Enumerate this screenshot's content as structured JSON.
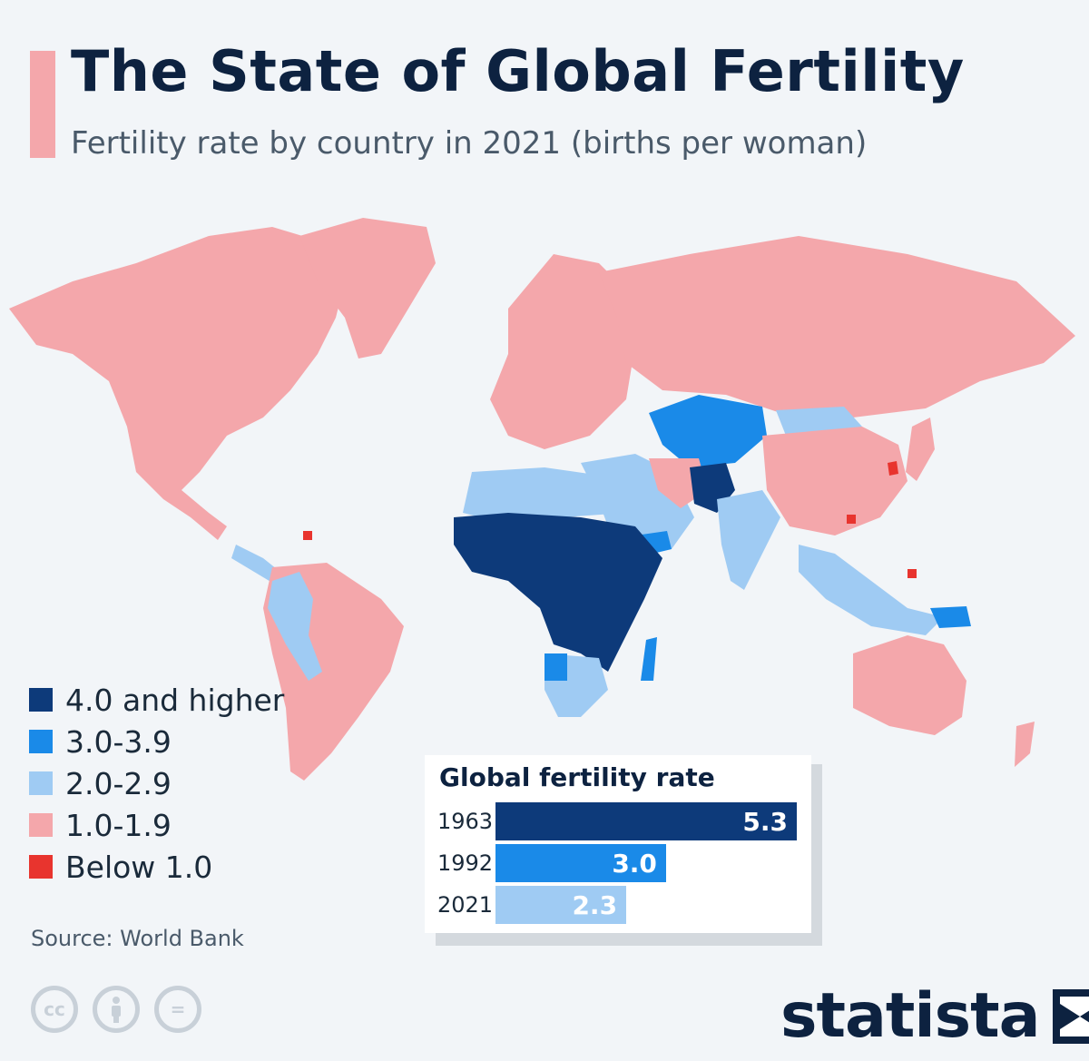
{
  "header": {
    "title": "The State of Global Fertility",
    "subtitle": "Fertility rate by country in 2021 (births per woman)"
  },
  "colors": {
    "accent": "#f4a7ab",
    "c4plus": "#0d3a7a",
    "c3": "#1a8ae8",
    "c2": "#9fcbf3",
    "c1": "#f4a7ab",
    "c0": "#e8342e"
  },
  "legend": {
    "items": [
      {
        "label": "4.0 and higher",
        "color": "#0d3a7a"
      },
      {
        "label": "3.0-3.9",
        "color": "#1a8ae8"
      },
      {
        "label": "2.0-2.9",
        "color": "#9fcbf3"
      },
      {
        "label": "1.0-1.9",
        "color": "#f4a7ab"
      },
      {
        "label": "Below 1.0",
        "color": "#e8342e"
      }
    ]
  },
  "footer": {
    "source": "Source: World Bank",
    "license_icons": [
      "cc-icon",
      "attribution-icon",
      "no-derivatives-icon"
    ],
    "cc_text": "cc",
    "nd_text": "="
  },
  "brand": {
    "name": "statista"
  },
  "chart_data": {
    "type": "bar",
    "title": "Global fertility rate",
    "categories": [
      "1963",
      "1992",
      "2021"
    ],
    "values": [
      5.3,
      3.0,
      2.3
    ],
    "labels": [
      "5.3",
      "3.0",
      "2.3"
    ],
    "colors": [
      "#0d3a7a",
      "#1a8ae8",
      "#9fcbf3"
    ],
    "xlim": [
      0,
      5.3
    ]
  }
}
